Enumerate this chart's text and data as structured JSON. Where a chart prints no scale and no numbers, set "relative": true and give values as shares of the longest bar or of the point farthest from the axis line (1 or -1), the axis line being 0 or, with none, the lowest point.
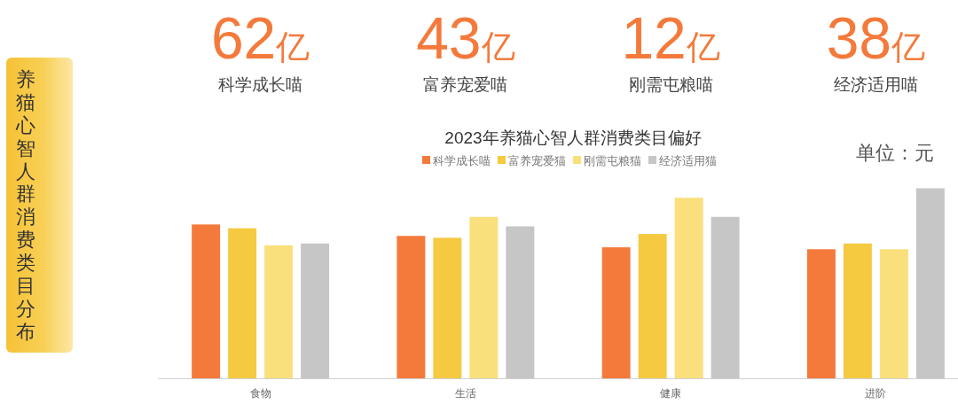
{
  "chart_data": [
    {
      "type": "other",
      "title": "养猫心智人群消费类目分布",
      "annotations": [
        "62亿",
        "科学成长喵",
        "43亿",
        "富养宠爱喵",
        "12亿",
        "刚需屯粮喵",
        "38亿",
        "经济适用喵"
      ]
    },
    {
      "type": "bar",
      "title": "2023年养猫心智人群消费类目偏好",
      "categories": [
        "食物",
        "生活",
        "健康",
        "进阶"
      ],
      "relative": true,
      "legend": "top",
      "annotations": [
        "单位：元"
      ],
      "series": [
        {
          "name": "科学成长喵",
          "color": "#f47a3b",
          "values": [
            0.81,
            0.75,
            0.69,
            0.68
          ]
        },
        {
          "name": "富养宠爱猫",
          "color": "#f5c940",
          "values": [
            0.79,
            0.74,
            0.76,
            0.71
          ]
        },
        {
          "name": "刚需屯粮猫",
          "color": "#f9e07c",
          "values": [
            0.7,
            0.85,
            0.95,
            0.68
          ]
        },
        {
          "name": "经济适用猫",
          "color": "#c6c6c6",
          "values": [
            0.71,
            0.8,
            0.85,
            1
          ]
        }
      ]
    }
  ]
}
